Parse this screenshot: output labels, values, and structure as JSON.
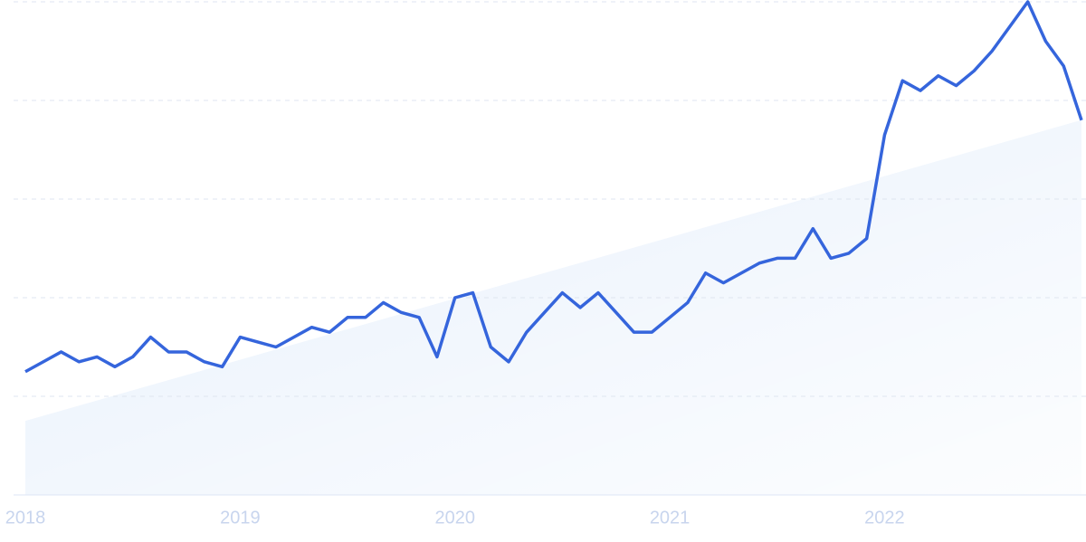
{
  "chart_data": {
    "type": "line",
    "categories": [
      "2018",
      null,
      null,
      null,
      null,
      null,
      null,
      null,
      null,
      null,
      null,
      null,
      "2019",
      null,
      null,
      null,
      null,
      null,
      null,
      null,
      null,
      null,
      null,
      null,
      "2020",
      null,
      null,
      null,
      null,
      null,
      null,
      null,
      null,
      null,
      null,
      null,
      "2021",
      null,
      null,
      null,
      null,
      null,
      null,
      null,
      null,
      null,
      null,
      null,
      "2022",
      null,
      null,
      null,
      null,
      null,
      null,
      null,
      null,
      null,
      null,
      null
    ],
    "series": [
      {
        "color": "#3565dc",
        "values": [
          25,
          27,
          29,
          27,
          28,
          26,
          28,
          32,
          29,
          29,
          27,
          26,
          32,
          31,
          30,
          32,
          34,
          33,
          36,
          36,
          39,
          37,
          36,
          28,
          40,
          41,
          30,
          27,
          33,
          37,
          41,
          38,
          41,
          37,
          33,
          33,
          36,
          39,
          45,
          43,
          45,
          47,
          48,
          48,
          54,
          48,
          49,
          52,
          73,
          84,
          82,
          85,
          83,
          86,
          90,
          95,
          100,
          92,
          87,
          76
        ]
      }
    ],
    "trend": [
      15,
      76
    ],
    "trend_color": "#e2edfb",
    "ylim": [
      0,
      100
    ],
    "yticks": [
      0,
      20,
      40,
      60,
      80,
      100
    ],
    "grid": true
  }
}
